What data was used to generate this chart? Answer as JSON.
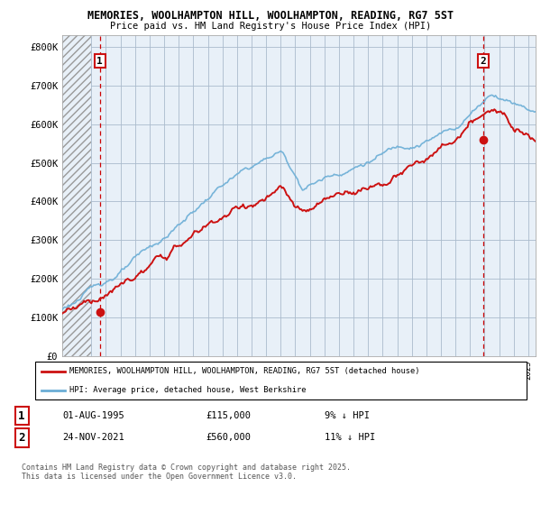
{
  "title1": "MEMORIES, WOOLHAMPTON HILL, WOOLHAMPTON, READING, RG7 5ST",
  "title2": "Price paid vs. HM Land Registry's House Price Index (HPI)",
  "xlim_start": 1993.0,
  "xlim_end": 2025.5,
  "ylim": [
    0,
    830000
  ],
  "yticks": [
    0,
    100000,
    200000,
    300000,
    400000,
    500000,
    600000,
    700000,
    800000
  ],
  "ytick_labels": [
    "£0",
    "£100K",
    "£200K",
    "£300K",
    "£400K",
    "£500K",
    "£600K",
    "£700K",
    "£800K"
  ],
  "hpi_color": "#6baed6",
  "price_color": "#cc1111",
  "marker1_year": 1995.58,
  "marker1_price": 115000,
  "marker2_year": 2021.9,
  "marker2_price": 560000,
  "hatch_end_year": 1995.0,
  "hatch_color": "#cccccc",
  "bg_color": "#ddeeff",
  "grid_color": "#aabbcc",
  "legend_line1": "MEMORIES, WOOLHAMPTON HILL, WOOLHAMPTON, READING, RG7 5ST (detached house)",
  "legend_line2": "HPI: Average price, detached house, West Berkshire",
  "footnote": "Contains HM Land Registry data © Crown copyright and database right 2025.\nThis data is licensed under the Open Government Licence v3.0."
}
